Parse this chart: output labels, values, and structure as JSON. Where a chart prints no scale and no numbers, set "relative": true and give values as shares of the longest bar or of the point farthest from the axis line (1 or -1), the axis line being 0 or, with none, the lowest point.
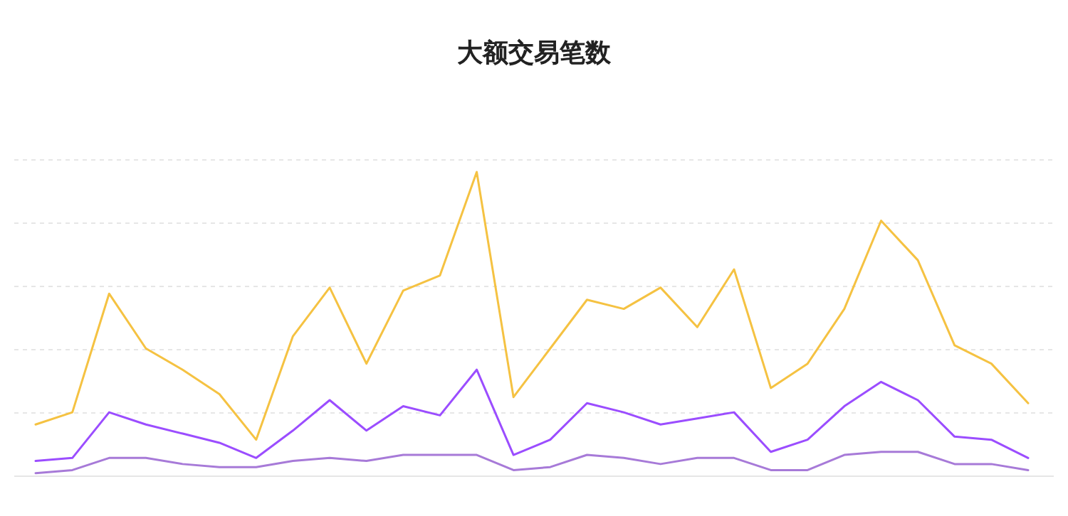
{
  "chart_data": {
    "type": "line",
    "title": "大额交易笔数",
    "relative": true,
    "grid": "y",
    "marker": "none",
    "line_style": "solid",
    "categories": [
      null,
      null,
      null,
      null,
      null,
      null,
      null,
      null,
      null,
      null,
      null,
      null,
      null,
      null,
      null,
      null,
      null,
      null,
      null,
      null,
      null,
      null,
      null,
      null,
      null,
      null,
      null,
      null
    ],
    "series": [
      {
        "color": "#f5c242",
        "values": [
          0.17,
          0.21,
          0.6,
          0.42,
          0.35,
          0.27,
          0.12,
          0.46,
          0.62,
          0.37,
          0.61,
          0.66,
          1,
          0.26,
          0.42,
          0.58,
          0.55,
          0.62,
          0.49,
          0.68,
          0.29,
          0.37,
          0.55,
          0.84,
          0.71,
          0.43,
          0.37,
          0.24
        ]
      },
      {
        "color": "#9b4dff",
        "values": [
          0.05,
          0.06,
          0.21,
          0.17,
          0.14,
          0.11,
          0.06,
          0.15,
          0.25,
          0.15,
          0.23,
          0.2,
          0.35,
          0.07,
          0.12,
          0.24,
          0.21,
          0.17,
          0.19,
          0.21,
          0.08,
          0.12,
          0.23,
          0.31,
          0.25,
          0.13,
          0.12,
          0.06
        ]
      },
      {
        "color": "#a77ad8",
        "values": [
          0.01,
          0.02,
          0.06,
          0.06,
          0.04,
          0.03,
          0.03,
          0.05,
          0.06,
          0.05,
          0.07,
          0.07,
          0.07,
          0.02,
          0.03,
          0.07,
          0.06,
          0.04,
          0.06,
          0.06,
          0.02,
          0.02,
          0.07,
          0.08,
          0.08,
          0.04,
          0.04,
          0.02
        ]
      }
    ]
  }
}
